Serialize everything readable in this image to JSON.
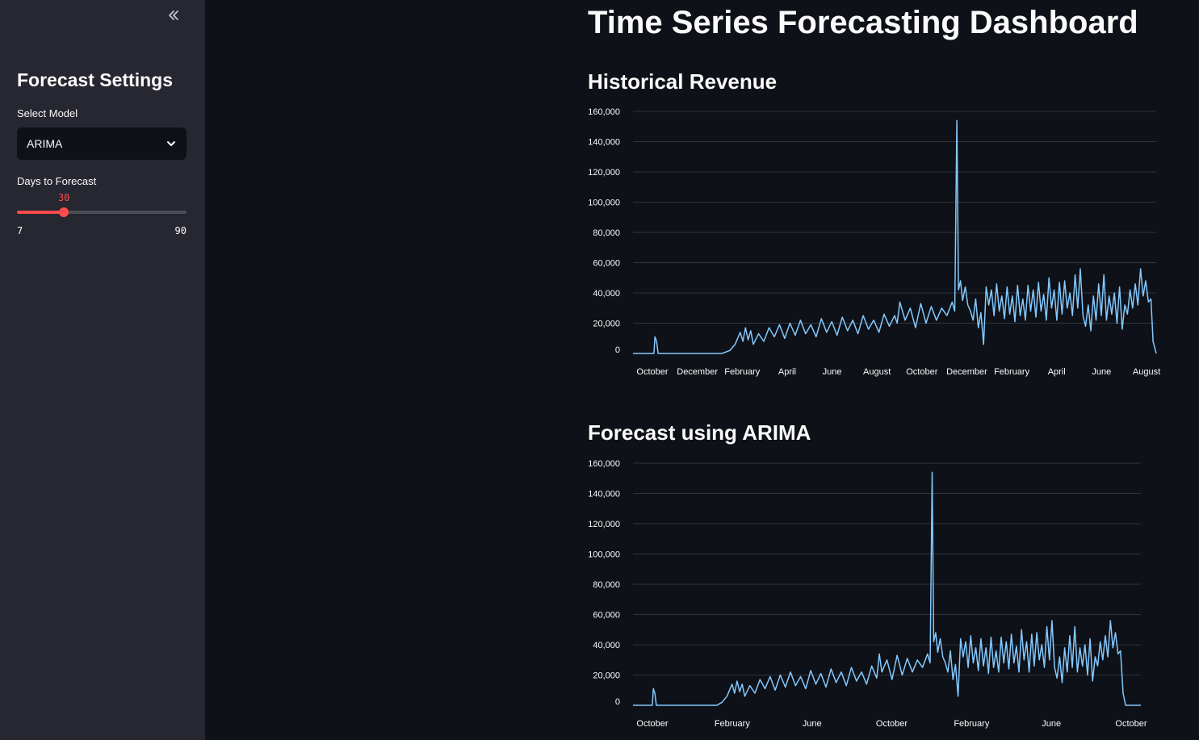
{
  "sidebar": {
    "title": "Forecast Settings",
    "model_label": "Select Model",
    "model_value": "ARIMA",
    "days_label": "Days to Forecast",
    "days_value": "30",
    "days_min": "7",
    "days_max": "90",
    "days_current": 30,
    "days_min_num": 7,
    "days_max_num": 90
  },
  "main": {
    "title": "Time Series Forecasting Dashboard"
  },
  "colors": {
    "line": "#83c9ff",
    "accent": "#ff4b4b"
  },
  "chart_data": [
    {
      "type": "line",
      "title": "Historical Revenue",
      "ylim": [
        0,
        160000
      ],
      "yticks": [
        "0",
        "20,000",
        "40,000",
        "60,000",
        "80,000",
        "100,000",
        "120,000",
        "140,000",
        "160,000"
      ],
      "xticks": [
        "October",
        "December",
        "February",
        "April",
        "June",
        "August",
        "October",
        "December",
        "February",
        "April",
        "June",
        "August"
      ],
      "x_range": [
        0,
        100
      ],
      "points": [
        [
          0,
          0
        ],
        [
          4,
          0
        ],
        [
          4.2,
          11000
        ],
        [
          4.5,
          8000
        ],
        [
          4.8,
          0
        ],
        [
          17,
          0
        ],
        [
          18.5,
          2000
        ],
        [
          19.5,
          6000
        ],
        [
          20,
          10000
        ],
        [
          20.5,
          14000
        ],
        [
          21,
          8000
        ],
        [
          21.5,
          17000
        ],
        [
          22,
          9000
        ],
        [
          22.5,
          15000
        ],
        [
          23,
          6000
        ],
        [
          24,
          13000
        ],
        [
          25,
          8000
        ],
        [
          26,
          17000
        ],
        [
          27,
          11000
        ],
        [
          28,
          19000
        ],
        [
          29,
          10000
        ],
        [
          30,
          20000
        ],
        [
          31,
          12000
        ],
        [
          32,
          22000
        ],
        [
          33,
          13000
        ],
        [
          34,
          19000
        ],
        [
          35,
          11000
        ],
        [
          36,
          23000
        ],
        [
          37,
          14000
        ],
        [
          38,
          21000
        ],
        [
          39,
          12000
        ],
        [
          40,
          24000
        ],
        [
          41,
          15000
        ],
        [
          42,
          22000
        ],
        [
          43,
          13000
        ],
        [
          44,
          25000
        ],
        [
          45,
          16000
        ],
        [
          46,
          22000
        ],
        [
          47,
          14000
        ],
        [
          48,
          26000
        ],
        [
          49,
          18000
        ],
        [
          50,
          25000
        ],
        [
          50.5,
          20000
        ],
        [
          51,
          34000
        ],
        [
          52,
          22000
        ],
        [
          53,
          30000
        ],
        [
          54,
          17000
        ],
        [
          55,
          33000
        ],
        [
          56,
          20000
        ],
        [
          57,
          31000
        ],
        [
          58,
          22000
        ],
        [
          59,
          30000
        ],
        [
          60,
          25000
        ],
        [
          61,
          34000
        ],
        [
          61.5,
          28000
        ],
        [
          61.9,
          154000
        ],
        [
          62.2,
          42000
        ],
        [
          62.6,
          48000
        ],
        [
          63,
          35000
        ],
        [
          63.5,
          44000
        ],
        [
          64,
          32000
        ],
        [
          64.5,
          28000
        ],
        [
          65,
          22000
        ],
        [
          65.5,
          36000
        ],
        [
          66,
          17000
        ],
        [
          66.5,
          27000
        ],
        [
          67,
          6000
        ],
        [
          67.5,
          44000
        ],
        [
          68,
          32000
        ],
        [
          68.5,
          42000
        ],
        [
          69,
          25000
        ],
        [
          69.5,
          46000
        ],
        [
          70,
          28000
        ],
        [
          70.5,
          38000
        ],
        [
          71,
          23000
        ],
        [
          71.5,
          44000
        ],
        [
          72,
          26000
        ],
        [
          72.5,
          38000
        ],
        [
          73,
          21000
        ],
        [
          73.5,
          45000
        ],
        [
          74,
          25000
        ],
        [
          74.5,
          36000
        ],
        [
          75,
          22000
        ],
        [
          75.5,
          45000
        ],
        [
          76,
          28000
        ],
        [
          76.5,
          42000
        ],
        [
          77,
          24000
        ],
        [
          77.5,
          47000
        ],
        [
          78,
          28000
        ],
        [
          78.5,
          39000
        ],
        [
          79,
          22000
        ],
        [
          79.5,
          50000
        ],
        [
          80,
          30000
        ],
        [
          80.5,
          42000
        ],
        [
          81,
          22000
        ],
        [
          81.5,
          47000
        ],
        [
          82,
          26000
        ],
        [
          82.5,
          48000
        ],
        [
          83,
          30000
        ],
        [
          83.5,
          40000
        ],
        [
          84,
          25000
        ],
        [
          84.5,
          52000
        ],
        [
          85,
          30000
        ],
        [
          85.5,
          56000
        ],
        [
          86,
          25000
        ],
        [
          86.5,
          18000
        ],
        [
          87,
          32000
        ],
        [
          87.5,
          15000
        ],
        [
          88,
          38000
        ],
        [
          88.5,
          22000
        ],
        [
          89,
          46000
        ],
        [
          89.5,
          25000
        ],
        [
          90,
          52000
        ],
        [
          90.5,
          22000
        ],
        [
          91,
          38000
        ],
        [
          91.5,
          26000
        ],
        [
          92,
          40000
        ],
        [
          92.5,
          20000
        ],
        [
          93,
          44000
        ],
        [
          93.5,
          16000
        ],
        [
          94,
          32000
        ],
        [
          94.5,
          26000
        ],
        [
          95,
          42000
        ],
        [
          95.5,
          30000
        ],
        [
          96,
          46000
        ],
        [
          96.5,
          32000
        ],
        [
          97,
          56000
        ],
        [
          97.5,
          38000
        ],
        [
          98,
          48000
        ],
        [
          98.5,
          34000
        ],
        [
          99,
          36000
        ],
        [
          99.4,
          8000
        ],
        [
          100,
          0
        ]
      ]
    },
    {
      "type": "line",
      "title": "Forecast using ARIMA",
      "ylim": [
        0,
        160000
      ],
      "yticks": [
        "0",
        "20,000",
        "40,000",
        "60,000",
        "80,000",
        "100,000",
        "120,000",
        "140,000",
        "160,000"
      ],
      "xticks": [
        "October",
        "February",
        "June",
        "October",
        "February",
        "June",
        "October"
      ],
      "x_range": [
        0,
        100
      ],
      "points": [
        [
          0,
          0
        ],
        [
          3.8,
          0
        ],
        [
          4,
          11000
        ],
        [
          4.3,
          8000
        ],
        [
          4.6,
          0
        ],
        [
          16.5,
          0
        ],
        [
          17.5,
          2000
        ],
        [
          18.5,
          6000
        ],
        [
          19,
          10000
        ],
        [
          19.5,
          14000
        ],
        [
          20,
          8000
        ],
        [
          20.5,
          16000
        ],
        [
          21,
          9000
        ],
        [
          21.5,
          14000
        ],
        [
          22,
          6000
        ],
        [
          23,
          13000
        ],
        [
          24,
          8000
        ],
        [
          25,
          17000
        ],
        [
          26,
          11000
        ],
        [
          27,
          19000
        ],
        [
          28,
          10000
        ],
        [
          29,
          20000
        ],
        [
          30,
          12000
        ],
        [
          31,
          22000
        ],
        [
          32,
          13000
        ],
        [
          33,
          19000
        ],
        [
          34,
          11000
        ],
        [
          35,
          23000
        ],
        [
          36,
          14000
        ],
        [
          37,
          21000
        ],
        [
          38,
          12000
        ],
        [
          39,
          24000
        ],
        [
          40,
          15000
        ],
        [
          41,
          22000
        ],
        [
          42,
          13000
        ],
        [
          43,
          25000
        ],
        [
          44,
          16000
        ],
        [
          45,
          22000
        ],
        [
          46,
          14000
        ],
        [
          47,
          26000
        ],
        [
          48,
          18000
        ],
        [
          48.5,
          34000
        ],
        [
          49,
          22000
        ],
        [
          50,
          30000
        ],
        [
          51,
          17000
        ],
        [
          52,
          33000
        ],
        [
          53,
          20000
        ],
        [
          54,
          31000
        ],
        [
          55,
          22000
        ],
        [
          56,
          30000
        ],
        [
          57,
          25000
        ],
        [
          58,
          34000
        ],
        [
          58.5,
          28000
        ],
        [
          58.9,
          154000
        ],
        [
          59.2,
          42000
        ],
        [
          59.6,
          48000
        ],
        [
          60,
          35000
        ],
        [
          60.5,
          44000
        ],
        [
          61,
          32000
        ],
        [
          61.5,
          28000
        ],
        [
          62,
          22000
        ],
        [
          62.5,
          36000
        ],
        [
          63,
          17000
        ],
        [
          63.5,
          27000
        ],
        [
          64,
          6000
        ],
        [
          64.5,
          44000
        ],
        [
          65,
          32000
        ],
        [
          65.5,
          42000
        ],
        [
          66,
          25000
        ],
        [
          66.5,
          46000
        ],
        [
          67,
          28000
        ],
        [
          67.5,
          38000
        ],
        [
          68,
          23000
        ],
        [
          68.5,
          44000
        ],
        [
          69,
          26000
        ],
        [
          69.5,
          38000
        ],
        [
          70,
          21000
        ],
        [
          70.5,
          45000
        ],
        [
          71,
          25000
        ],
        [
          71.5,
          36000
        ],
        [
          72,
          22000
        ],
        [
          72.5,
          45000
        ],
        [
          73,
          28000
        ],
        [
          73.5,
          42000
        ],
        [
          74,
          24000
        ],
        [
          74.5,
          47000
        ],
        [
          75,
          28000
        ],
        [
          75.5,
          39000
        ],
        [
          76,
          22000
        ],
        [
          76.5,
          50000
        ],
        [
          77,
          30000
        ],
        [
          77.5,
          42000
        ],
        [
          78,
          22000
        ],
        [
          78.5,
          47000
        ],
        [
          79,
          26000
        ],
        [
          79.5,
          48000
        ],
        [
          80,
          30000
        ],
        [
          80.5,
          40000
        ],
        [
          81,
          25000
        ],
        [
          81.5,
          52000
        ],
        [
          82,
          30000
        ],
        [
          82.5,
          56000
        ],
        [
          83,
          25000
        ],
        [
          83.5,
          18000
        ],
        [
          84,
          32000
        ],
        [
          84.5,
          15000
        ],
        [
          85,
          38000
        ],
        [
          85.5,
          22000
        ],
        [
          86,
          46000
        ],
        [
          86.5,
          25000
        ],
        [
          87,
          52000
        ],
        [
          87.5,
          22000
        ],
        [
          88,
          38000
        ],
        [
          88.5,
          26000
        ],
        [
          89,
          40000
        ],
        [
          89.5,
          20000
        ],
        [
          90,
          44000
        ],
        [
          90.5,
          16000
        ],
        [
          91,
          32000
        ],
        [
          91.5,
          26000
        ],
        [
          92,
          42000
        ],
        [
          92.5,
          30000
        ],
        [
          93,
          46000
        ],
        [
          93.5,
          32000
        ],
        [
          94,
          56000
        ],
        [
          94.5,
          38000
        ],
        [
          95,
          48000
        ],
        [
          95.5,
          34000
        ],
        [
          96,
          36000
        ],
        [
          96.5,
          8000
        ],
        [
          97,
          0
        ],
        [
          100,
          0
        ]
      ]
    }
  ]
}
